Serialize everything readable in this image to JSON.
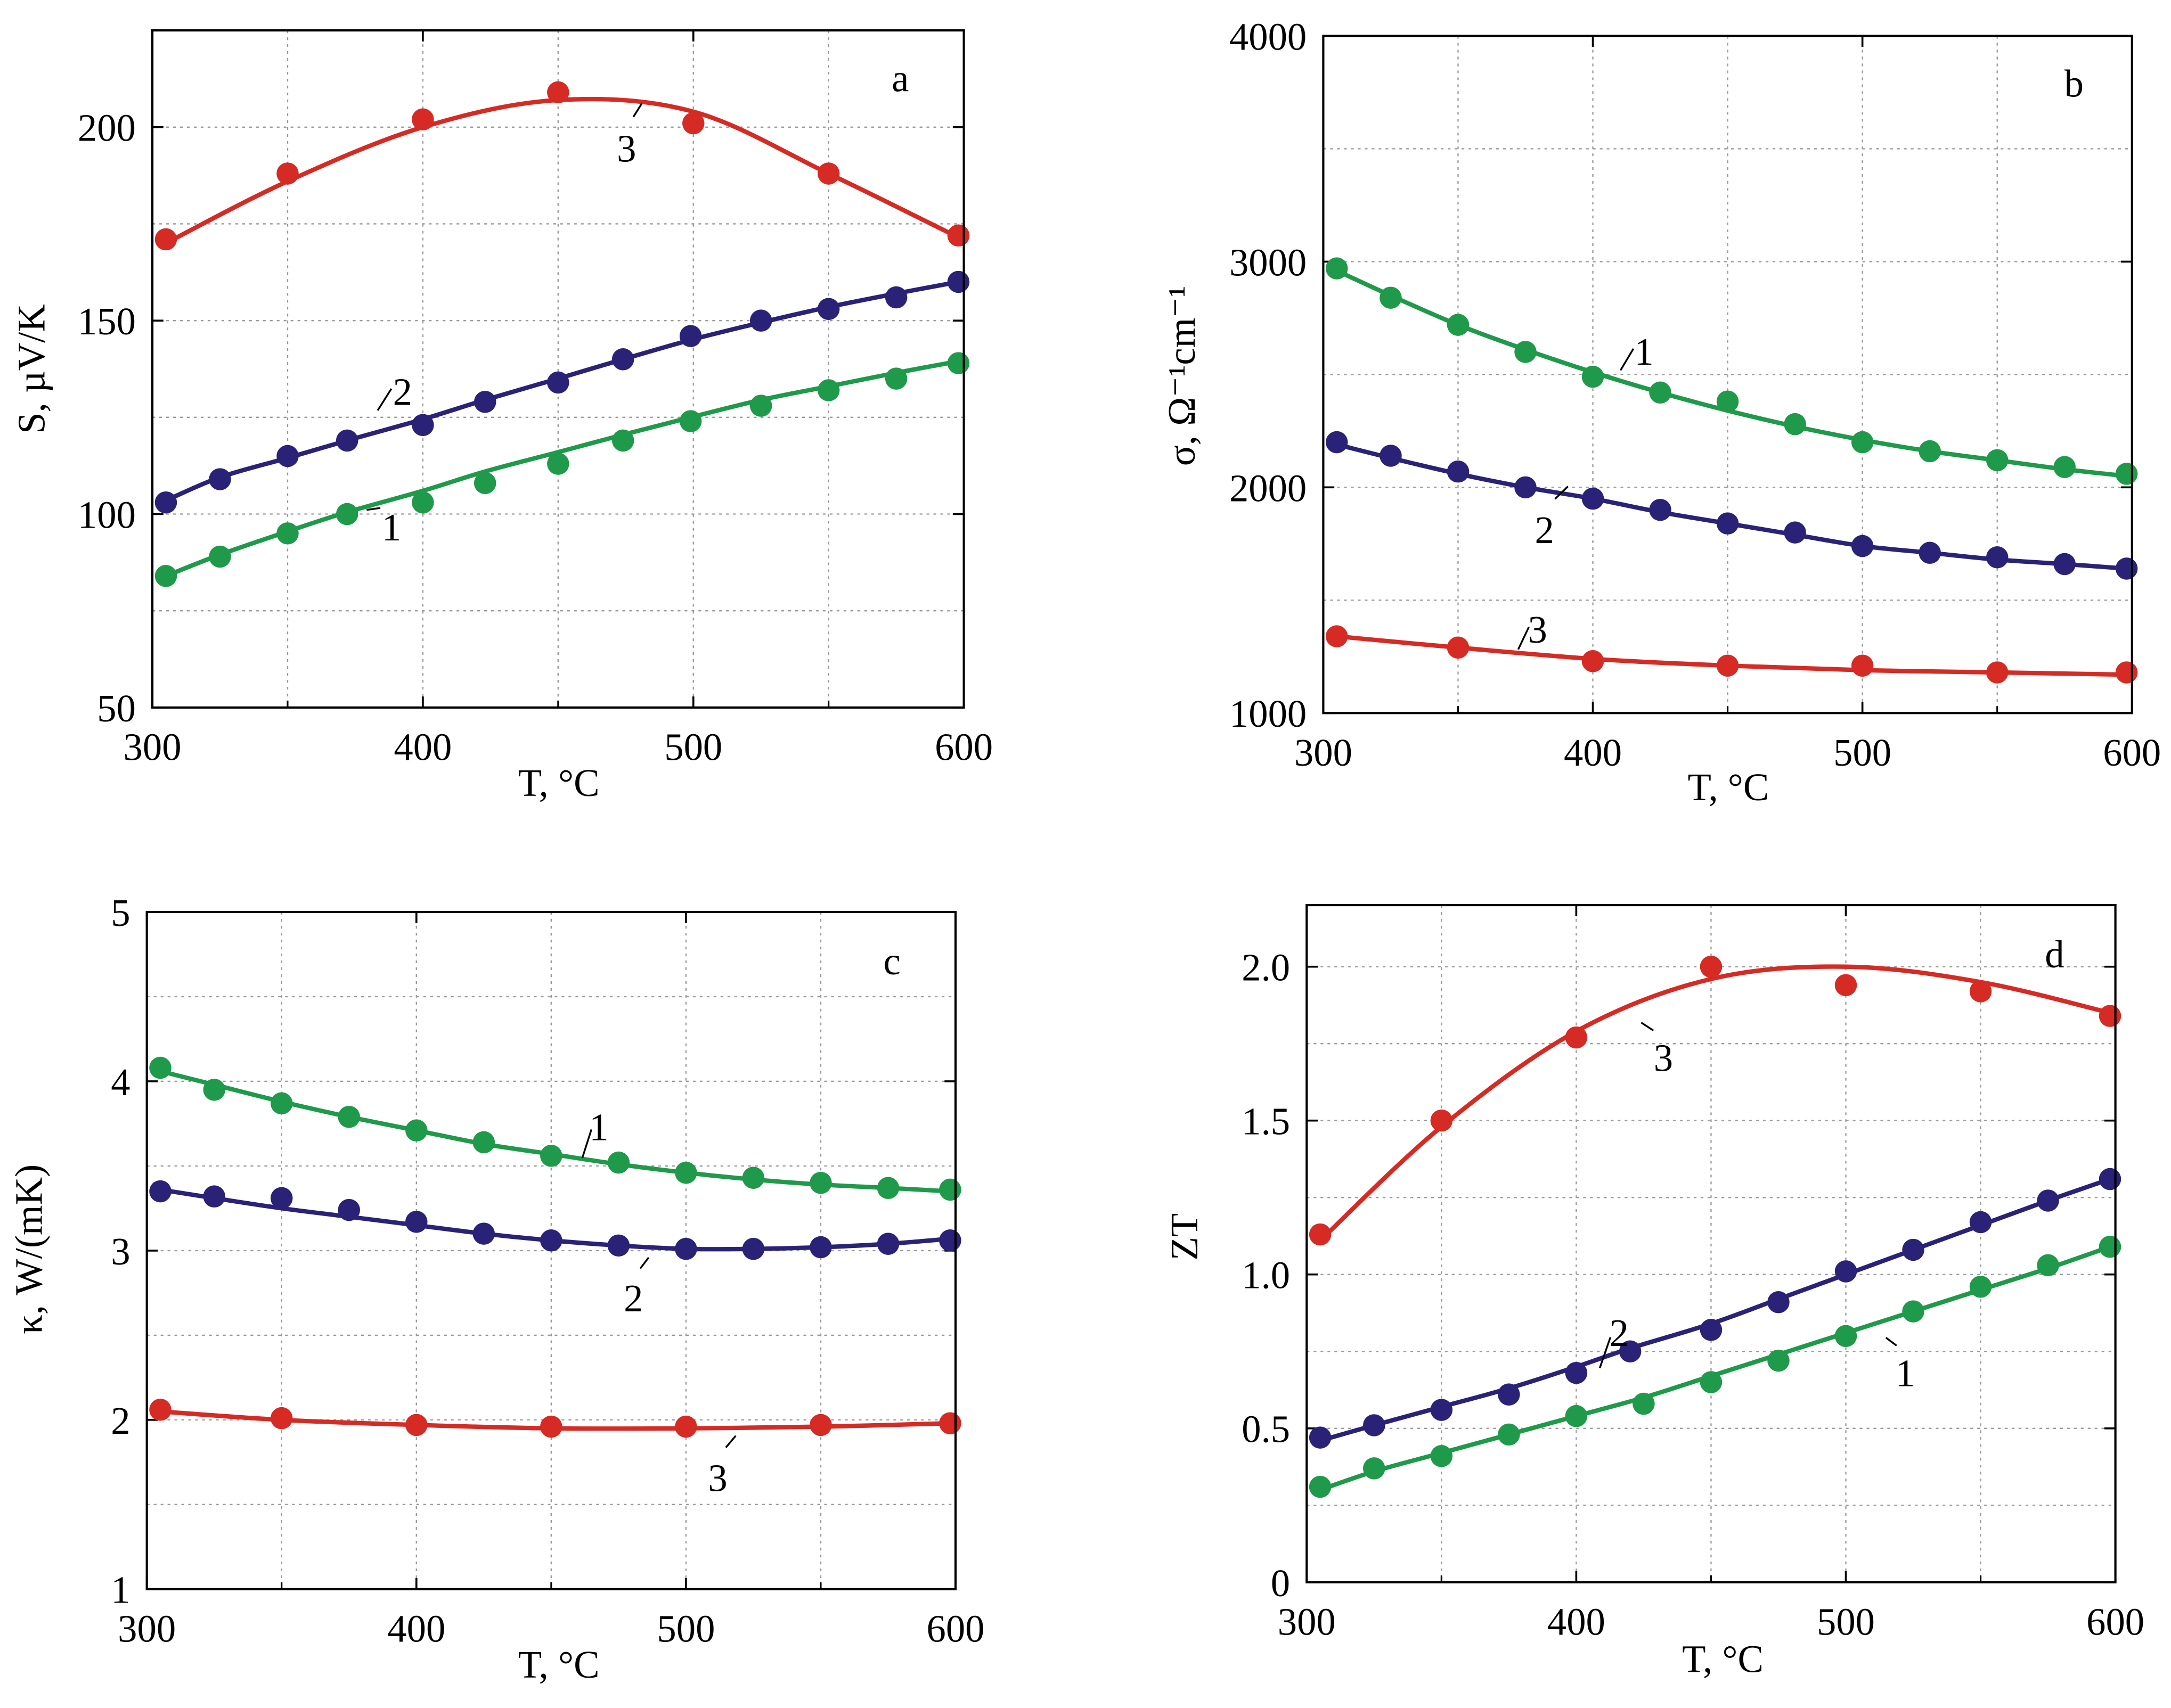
{
  "figure_colors": {
    "series1": "#1f9a4a",
    "series2": "#2a2277",
    "series3": "#d52b24"
  },
  "chart_data": [
    {
      "type": "line",
      "panel": "a",
      "xlabel": "T, °C",
      "ylabel": "S, µV/K",
      "xlim": [
        300,
        600
      ],
      "ylim": [
        50,
        225
      ],
      "xticks": [
        300,
        400,
        500,
        600
      ],
      "xtick_labels": [
        "300",
        "400",
        "500",
        "600"
      ],
      "yticks": [
        50,
        100,
        150,
        200
      ],
      "ytick_labels": [
        "50",
        "100",
        "150",
        "200"
      ],
      "grid": true,
      "series": [
        {
          "name": "1",
          "color": "#1f9a4a",
          "x": [
            305,
            325,
            350,
            372,
            400,
            423,
            450,
            474,
            499,
            525,
            550,
            575,
            598
          ],
          "y": [
            84,
            89,
            95,
            100,
            103,
            108,
            113,
            119,
            124,
            128,
            132,
            135,
            139
          ],
          "fit_y": [
            84,
            89.5,
            95.5,
            100.5,
            106,
            111,
            116,
            120.5,
            125,
            129.5,
            133,
            136.5,
            139.5
          ],
          "label_at": [
            283,
            381
          ],
          "leader_from": [
            265,
            369
          ]
        },
        {
          "name": "2",
          "color": "#2a2277",
          "x": [
            305,
            325,
            350,
            372,
            400,
            423,
            450,
            474,
            499,
            525,
            550,
            575,
            598
          ],
          "y": [
            103,
            109,
            115,
            119,
            123,
            129,
            134,
            140,
            146,
            150,
            153,
            156,
            160
          ],
          "fit_y": [
            103.5,
            109.5,
            114.5,
            119,
            124.5,
            129.5,
            135,
            140,
            145,
            149.5,
            153.5,
            157,
            160
          ],
          "label_at": [
            291,
            283
          ],
          "leader_from": [
            273,
            297
          ]
        },
        {
          "name": "3",
          "color": "#d52b24",
          "x": [
            305,
            350,
            400,
            450,
            500,
            550,
            598
          ],
          "y": [
            171,
            188,
            202,
            209,
            201,
            188,
            172
          ],
          "fit_y": [
            170,
            186,
            200,
            207,
            204,
            188,
            171.5
          ],
          "label_at": [
            453,
            107
          ],
          "leader_from": [
            464,
            75
          ]
        }
      ],
      "annotations": [
        "a"
      ]
    },
    {
      "type": "line",
      "panel": "b",
      "xlabel": "T, °C",
      "ylabel": "σ, Ω⁻¹cm⁻¹",
      "xlim": [
        300,
        600
      ],
      "ylim": [
        1000,
        4000
      ],
      "xticks": [
        300,
        400,
        500,
        600
      ],
      "xtick_labels": [
        "300",
        "400",
        "500",
        "600"
      ],
      "yticks": [
        1000,
        2000,
        3000,
        4000
      ],
      "ytick_labels": [
        "1000",
        "2000",
        "3000",
        "4000"
      ],
      "grid": true,
      "series": [
        {
          "name": "1",
          "color": "#1f9a4a",
          "x": [
            305,
            325,
            350,
            375,
            400,
            425,
            450,
            475,
            500,
            525,
            550,
            575,
            598
          ],
          "y": [
            2970,
            2840,
            2720,
            2600,
            2490,
            2420,
            2380,
            2280,
            2200,
            2160,
            2120,
            2090,
            2060
          ],
          "fit_y": [
            2960,
            2850,
            2720,
            2610,
            2510,
            2420,
            2340,
            2270,
            2210,
            2160,
            2120,
            2080,
            2050
          ],
          "label_at": [
            1189,
            254
          ],
          "leader_from": [
            1172,
            268
          ]
        },
        {
          "name": "2",
          "color": "#2a2277",
          "x": [
            305,
            325,
            350,
            375,
            400,
            425,
            450,
            475,
            500,
            525,
            550,
            575,
            598
          ],
          "y": [
            2200,
            2140,
            2070,
            2000,
            1950,
            1900,
            1840,
            1800,
            1740,
            1710,
            1690,
            1660,
            1640
          ],
          "fit_y": [
            2190,
            2130,
            2060,
            2000,
            1950,
            1890,
            1840,
            1790,
            1740,
            1710,
            1680,
            1660,
            1640
          ],
          "label_at": [
            1117,
            383
          ],
          "leader_from": [
            1134,
            352
          ]
        },
        {
          "name": "3",
          "color": "#d52b24",
          "x": [
            305,
            350,
            400,
            450,
            500,
            550,
            598
          ],
          "y": [
            1340,
            1290,
            1230,
            1210,
            1210,
            1180,
            1180
          ],
          "fit_y": [
            1340,
            1290,
            1240,
            1210,
            1190,
            1180,
            1170
          ],
          "label_at": [
            1112,
            455
          ],
          "leader_from": [
            1098,
            470
          ]
        }
      ],
      "annotations": [
        "b"
      ]
    },
    {
      "type": "line",
      "panel": "c",
      "xlabel": "T, °C",
      "ylabel": "κ, W/(mK)",
      "xlim": [
        300,
        600
      ],
      "ylim": [
        1,
        5
      ],
      "xticks": [
        300,
        400,
        500,
        600
      ],
      "xtick_labels": [
        "300",
        "400",
        "500",
        "600"
      ],
      "yticks": [
        1,
        2,
        3,
        4,
        5
      ],
      "ytick_labels": [
        "1",
        "2",
        "3",
        "4",
        "5"
      ],
      "grid": true,
      "series": [
        {
          "name": "1",
          "color": "#1f9a4a",
          "x": [
            305,
            325,
            350,
            375,
            400,
            425,
            450,
            475,
            500,
            525,
            550,
            575,
            598
          ],
          "y": [
            4.08,
            3.95,
            3.87,
            3.79,
            3.71,
            3.64,
            3.56,
            3.52,
            3.46,
            3.43,
            3.4,
            3.37,
            3.36
          ],
          "fit_y": [
            4.06,
            3.98,
            3.88,
            3.79,
            3.71,
            3.63,
            3.57,
            3.51,
            3.46,
            3.42,
            3.39,
            3.37,
            3.35
          ],
          "label_at": [
            433,
            815
          ],
          "leader_from": [
            421,
            838
          ]
        },
        {
          "name": "2",
          "color": "#2a2277",
          "x": [
            305,
            325,
            350,
            375,
            400,
            425,
            450,
            475,
            500,
            525,
            550,
            575,
            598
          ],
          "y": [
            3.35,
            3.32,
            3.31,
            3.24,
            3.17,
            3.1,
            3.06,
            3.03,
            3.01,
            3.01,
            3.02,
            3.04,
            3.06
          ],
          "fit_y": [
            3.36,
            3.31,
            3.25,
            3.2,
            3.15,
            3.1,
            3.06,
            3.03,
            3.01,
            3.01,
            3.02,
            3.04,
            3.07
          ],
          "label_at": [
            458,
            939
          ],
          "leader_from": [
            469,
            910
          ]
        },
        {
          "name": "3",
          "color": "#d52b24",
          "x": [
            305,
            350,
            400,
            450,
            500,
            550,
            598
          ],
          "y": [
            2.06,
            2.01,
            1.97,
            1.96,
            1.96,
            1.97,
            1.98
          ],
          "fit_y": [
            2.05,
            2.0,
            1.97,
            1.95,
            1.95,
            1.96,
            1.98
          ],
          "label_at": [
            519,
            1069
          ],
          "leader_from": [
            532,
            1039
          ]
        }
      ],
      "annotations": [
        "c"
      ]
    },
    {
      "type": "line",
      "panel": "d",
      "xlabel": "T, °C",
      "ylabel": "ZT",
      "xlim": [
        300,
        600
      ],
      "ylim": [
        0,
        2.2
      ],
      "xticks": [
        300,
        400,
        500,
        600
      ],
      "xtick_labels": [
        "300",
        "400",
        "500",
        "600"
      ],
      "yticks": [
        0,
        0.5,
        1.0,
        1.5,
        2.0
      ],
      "ytick_labels": [
        "0",
        "0.5",
        "1.0",
        "1.5",
        "2.0"
      ],
      "grid": true,
      "series": [
        {
          "name": "1",
          "color": "#1f9a4a",
          "x": [
            305,
            325,
            350,
            375,
            400,
            425,
            450,
            475,
            500,
            525,
            550,
            575,
            598
          ],
          "y": [
            0.31,
            0.37,
            0.41,
            0.48,
            0.54,
            0.58,
            0.65,
            0.72,
            0.8,
            0.88,
            0.96,
            1.03,
            1.09
          ],
          "fit_y": [
            0.3,
            0.36,
            0.42,
            0.48,
            0.54,
            0.6,
            0.67,
            0.74,
            0.81,
            0.88,
            0.95,
            1.02,
            1.09
          ],
          "label_at": [
            1378,
            993
          ],
          "leader_from": [
            1364,
            968
          ]
        },
        {
          "name": "2",
          "color": "#2a2277",
          "x": [
            305,
            325,
            350,
            375,
            400,
            420,
            450,
            475,
            500,
            525,
            550,
            575,
            598
          ],
          "y": [
            0.47,
            0.51,
            0.56,
            0.61,
            0.68,
            0.75,
            0.82,
            0.91,
            1.01,
            1.08,
            1.17,
            1.24,
            1.31
          ],
          "fit_y": [
            0.46,
            0.51,
            0.57,
            0.63,
            0.7,
            0.76,
            0.84,
            0.92,
            1.0,
            1.08,
            1.16,
            1.24,
            1.31
          ],
          "label_at": [
            1171,
            964
          ],
          "leader_from": [
            1157,
            990
          ]
        },
        {
          "name": "3",
          "color": "#d52b24",
          "x": [
            305,
            350,
            400,
            450,
            500,
            550,
            598
          ],
          "y": [
            1.13,
            1.5,
            1.77,
            2.0,
            1.94,
            1.92,
            1.84
          ],
          "fit_y": [
            1.11,
            1.48,
            1.79,
            1.96,
            2.0,
            1.95,
            1.85
          ],
          "label_at": [
            1203,
            765
          ],
          "leader_from": [
            1187,
            740
          ]
        }
      ],
      "annotations": [
        "d"
      ]
    }
  ]
}
